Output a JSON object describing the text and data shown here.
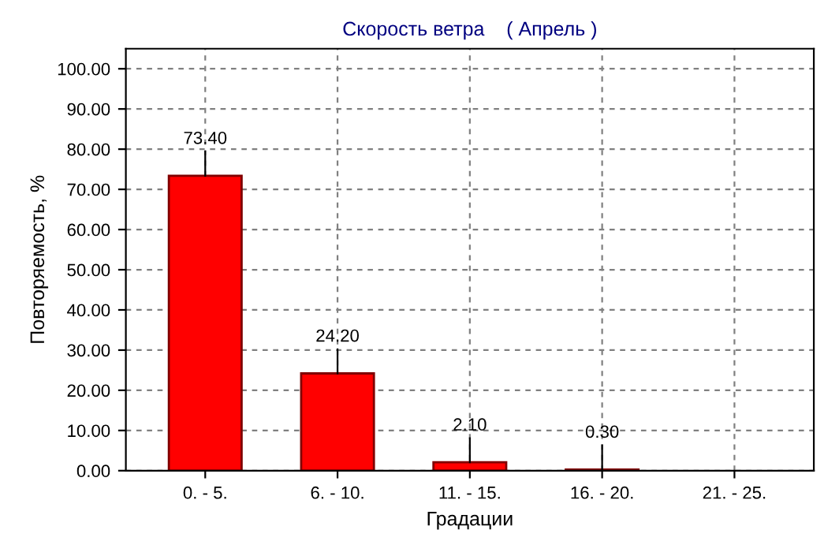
{
  "chart_data": {
    "type": "bar",
    "title": "Скорость ветра    ( Апрель )",
    "xlabel": "Градации",
    "ylabel": "Повторяемость, %",
    "categories": [
      "0. - 5.",
      "6. - 10.",
      "11. - 15.",
      "16. - 20.",
      "21. - 25."
    ],
    "values": [
      73.4,
      24.2,
      2.1,
      0.3,
      null
    ],
    "value_labels": [
      "73.40",
      "24.20",
      "2.10",
      "0.30",
      null
    ],
    "color": "#ff0000",
    "ylim": [
      0,
      105
    ],
    "yticks": [
      {
        "value": 0,
        "label": "0.00"
      },
      {
        "value": 10,
        "label": "10.00"
      },
      {
        "value": 20,
        "label": "20.00"
      },
      {
        "value": 30,
        "label": "30.00"
      },
      {
        "value": 40,
        "label": "40.00"
      },
      {
        "value": 50,
        "label": "50.00"
      },
      {
        "value": 60,
        "label": "60.00"
      },
      {
        "value": 70,
        "label": "70.00"
      },
      {
        "value": 80,
        "label": "80.00"
      },
      {
        "value": 90,
        "label": "90.00"
      },
      {
        "value": 100,
        "label": "100.00"
      }
    ],
    "grid": true
  }
}
